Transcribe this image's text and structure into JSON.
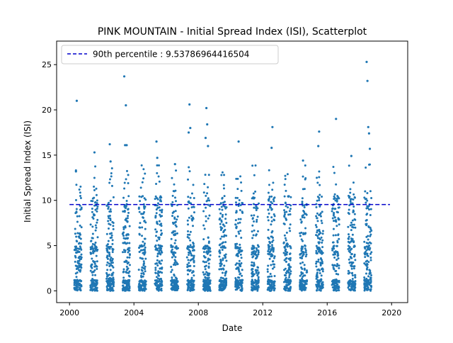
{
  "chart_data": {
    "type": "scatter",
    "title": "PINK MOUNTAIN - Initial Spread Index (ISI), Scatterplot",
    "xlabel": "Date",
    "ylabel": "Initial Spread Index (ISI)",
    "xlim": [
      1999.2,
      2021.0
    ],
    "ylim": [
      -1.3,
      27.6
    ],
    "xticks": [
      2000,
      2004,
      2008,
      2012,
      2016,
      2020
    ],
    "xtick_labels": [
      "2000",
      "2004",
      "2008",
      "2012",
      "2016",
      "2020"
    ],
    "yticks": [
      0,
      5,
      10,
      15,
      20,
      25
    ],
    "ytick_labels": [
      "0",
      "5",
      "10",
      "15",
      "20",
      "25"
    ],
    "grid": false,
    "legend_position": "top-left",
    "point_color": "#1f77b4",
    "seasons": {
      "years": [
        2000,
        2001,
        2002,
        2003,
        2004,
        2005,
        2006,
        2007,
        2008,
        2009,
        2010,
        2011,
        2012,
        2013,
        2014,
        2015,
        2016,
        2017,
        2018
      ],
      "season_start_fraction": 0.3,
      "season_end_fraction": 0.75,
      "approx_points_per_season": 150,
      "typical_range": [
        0,
        10
      ],
      "density_note": "points per fire season; values mostly 0-10 with dense cluster near 0"
    },
    "highlighted_points": [
      {
        "x": 2000.45,
        "y": 21.0
      },
      {
        "x": 2000.4,
        "y": 13.2
      },
      {
        "x": 2001.55,
        "y": 15.3
      },
      {
        "x": 2002.5,
        "y": 16.2
      },
      {
        "x": 2002.55,
        "y": 14.3
      },
      {
        "x": 2003.4,
        "y": 23.7
      },
      {
        "x": 2003.5,
        "y": 20.5
      },
      {
        "x": 2003.45,
        "y": 16.1
      },
      {
        "x": 2003.55,
        "y": 16.1
      },
      {
        "x": 2005.4,
        "y": 16.5
      },
      {
        "x": 2005.45,
        "y": 14.7
      },
      {
        "x": 2006.55,
        "y": 14.0
      },
      {
        "x": 2007.45,
        "y": 20.6
      },
      {
        "x": 2007.5,
        "y": 18.0
      },
      {
        "x": 2007.4,
        "y": 17.5
      },
      {
        "x": 2008.5,
        "y": 20.2
      },
      {
        "x": 2008.55,
        "y": 18.4
      },
      {
        "x": 2008.45,
        "y": 16.9
      },
      {
        "x": 2008.6,
        "y": 16.0
      },
      {
        "x": 2010.5,
        "y": 16.5
      },
      {
        "x": 2012.6,
        "y": 18.1
      },
      {
        "x": 2012.55,
        "y": 15.8
      },
      {
        "x": 2014.5,
        "y": 14.4
      },
      {
        "x": 2015.5,
        "y": 17.6
      },
      {
        "x": 2015.45,
        "y": 16.0
      },
      {
        "x": 2016.55,
        "y": 19.0
      },
      {
        "x": 2017.5,
        "y": 14.9
      },
      {
        "x": 2018.45,
        "y": 25.3
      },
      {
        "x": 2018.5,
        "y": 23.2
      },
      {
        "x": 2018.55,
        "y": 18.1
      },
      {
        "x": 2018.6,
        "y": 17.4
      },
      {
        "x": 2018.65,
        "y": 15.7
      }
    ],
    "reference_lines": [
      {
        "name": "90th percentile : 9.53786964416504",
        "y": 9.53786964416504,
        "style": "dashed",
        "color": "#0000cc"
      }
    ]
  }
}
